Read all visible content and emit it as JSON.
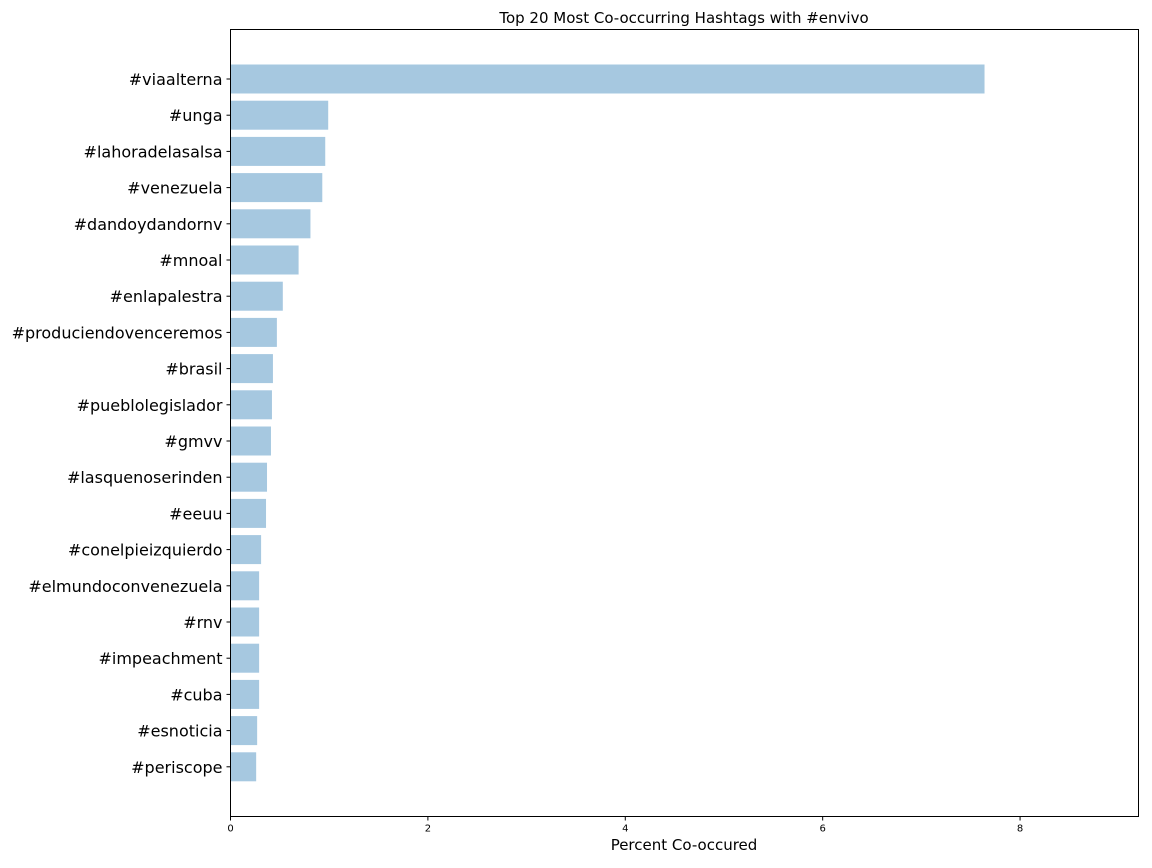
{
  "chart_data": {
    "type": "bar",
    "orientation": "horizontal",
    "title": "Top 20 Most Co-occurring Hashtags with #envivo",
    "xlabel": "Percent Co-occured",
    "ylabel": "",
    "xlim": [
      0,
      9.2
    ],
    "xticks": [
      0,
      2,
      4,
      6,
      8
    ],
    "xtick_labels": [
      "0",
      "2",
      "4",
      "6",
      "8"
    ],
    "grid": false,
    "legend": false,
    "bar_color": "#a6c8e0",
    "categories": [
      "#viaalterna",
      "#unga",
      "#lahoradelasalsa",
      "#venezuela",
      "#dandoydandornv",
      "#mnoal",
      "#enlapalestra",
      "#produciendovenceremos",
      "#brasil",
      "#pueblolegislador",
      "#gmvv",
      "#lasquenoserinden",
      "#eeuu",
      "#conelpieizquierdo",
      "#elmundoconvenezuela",
      "#rnv",
      "#impeachment",
      "#cuba",
      "#esnoticia",
      "#periscope"
    ],
    "values": [
      7.64,
      0.99,
      0.96,
      0.93,
      0.81,
      0.69,
      0.53,
      0.47,
      0.43,
      0.42,
      0.41,
      0.37,
      0.36,
      0.31,
      0.29,
      0.29,
      0.29,
      0.29,
      0.27,
      0.26
    ]
  }
}
